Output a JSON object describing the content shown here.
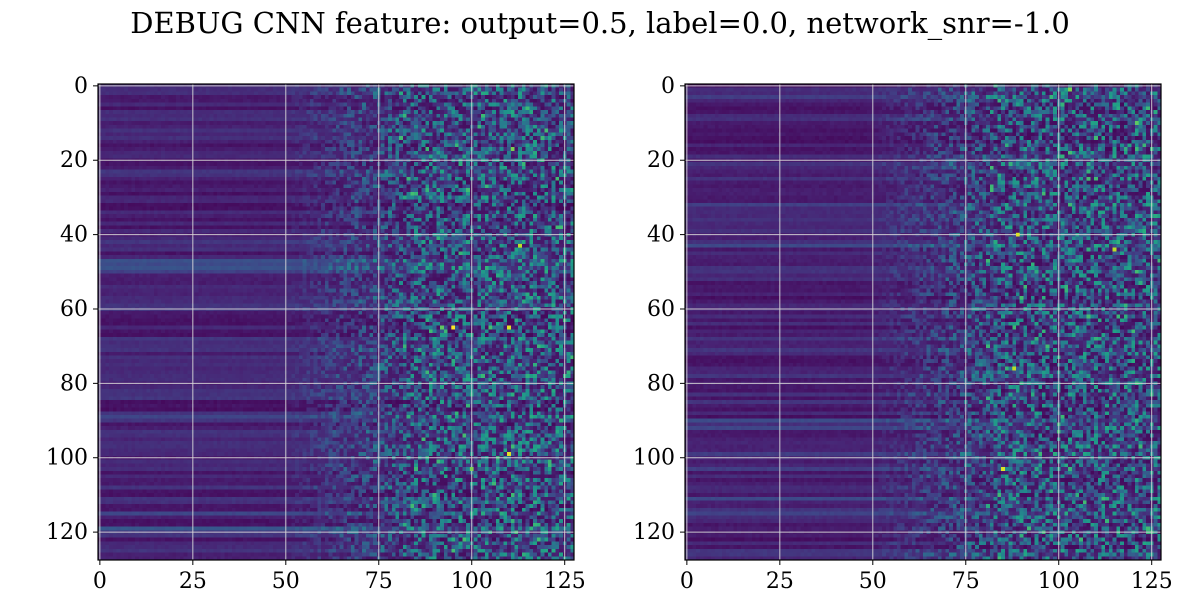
{
  "figure": {
    "title": "DEBUG CNN feature: output=0.5, label=0.0, network_snr=-1.0"
  },
  "chart_data": [
    {
      "type": "heatmap",
      "panel": "left",
      "colormap": "viridis",
      "title": "",
      "xlabel": "",
      "ylabel": "",
      "grid": true,
      "x_ticks": [
        0,
        25,
        50,
        75,
        100,
        125
      ],
      "y_ticks": [
        0,
        20,
        40,
        60,
        80,
        100,
        120
      ],
      "xlim": [
        0,
        127
      ],
      "ylim": [
        127,
        0
      ],
      "value_range": [
        0,
        1
      ],
      "description_of_values": "128x128 matrix; low, horizontally banded values for columns 0-50, noise increasing from ~55 onward, sparse bright pixels beyond column 80",
      "bright_points": [
        {
          "x": 95,
          "y": 65,
          "value": 1.0
        },
        {
          "x": 110,
          "y": 65,
          "value": 0.95
        },
        {
          "x": 113,
          "y": 43,
          "value": 0.9
        },
        {
          "x": 110,
          "y": 99,
          "value": 0.95
        },
        {
          "x": 111,
          "y": 17,
          "value": 0.8
        },
        {
          "x": 100,
          "y": 103,
          "value": 0.8
        },
        {
          "x": 92,
          "y": 65,
          "value": 0.75
        },
        {
          "x": 105,
          "y": 65,
          "value": 0.7
        }
      ]
    },
    {
      "type": "heatmap",
      "panel": "right",
      "colormap": "viridis",
      "title": "",
      "xlabel": "",
      "ylabel": "",
      "grid": true,
      "x_ticks": [
        0,
        25,
        50,
        75,
        100,
        125
      ],
      "y_ticks": [
        0,
        20,
        40,
        60,
        80,
        100,
        120
      ],
      "xlim": [
        0,
        127
      ],
      "ylim": [
        127,
        0
      ],
      "value_range": [
        0,
        1
      ],
      "description_of_values": "128x128 matrix; low, horizontally banded values for columns 0-50, noise increasing from ~55 onward, sparse bright pixels beyond column 80",
      "bright_points": [
        {
          "x": 89,
          "y": 40,
          "value": 0.95
        },
        {
          "x": 115,
          "y": 44,
          "value": 0.9
        },
        {
          "x": 85,
          "y": 103,
          "value": 0.95
        },
        {
          "x": 88,
          "y": 76,
          "value": 0.9
        },
        {
          "x": 103,
          "y": 1,
          "value": 0.8
        },
        {
          "x": 121,
          "y": 10,
          "value": 0.75
        },
        {
          "x": 108,
          "y": 25,
          "value": 0.7
        },
        {
          "x": 90,
          "y": 57,
          "value": 0.7
        }
      ]
    }
  ]
}
